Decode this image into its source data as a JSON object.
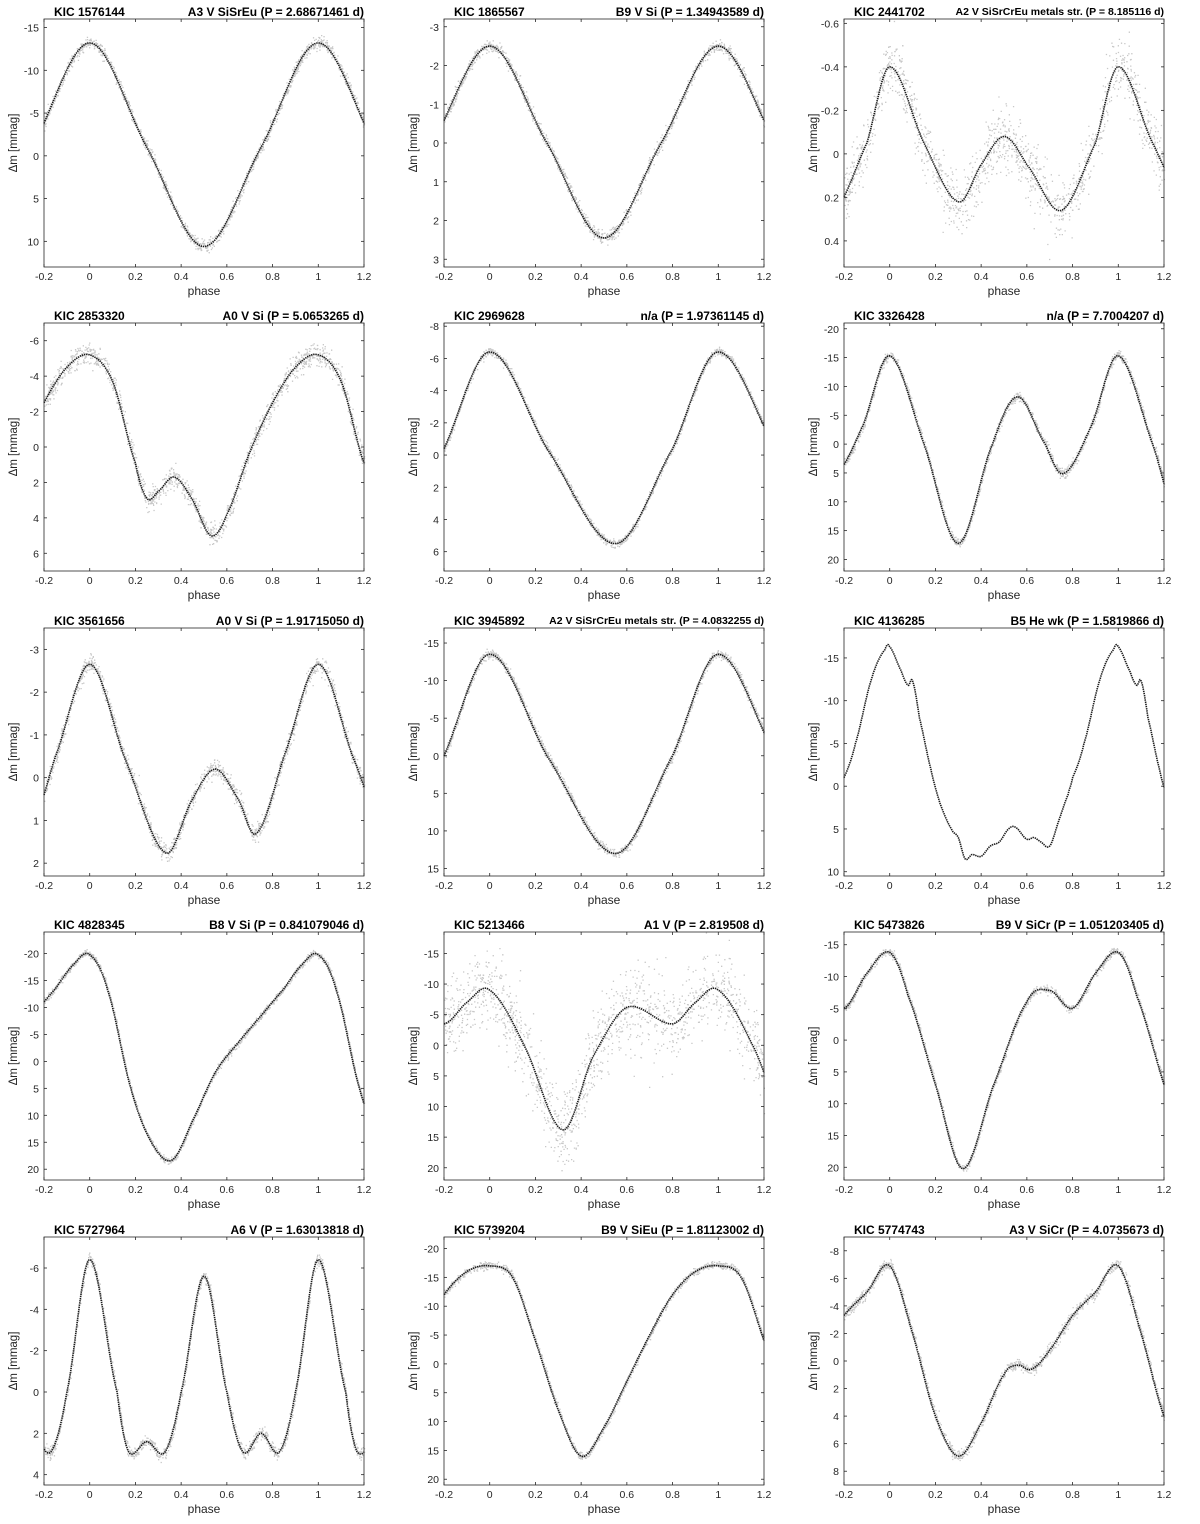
{
  "chart_data": [
    {
      "type": "scatter",
      "title": "KIC 1576144",
      "spec": "A3 V SiSrEu (P = 2.68671461 d)",
      "xlabel": "phase",
      "ylabel": "Δm [mmag]",
      "xlim": [
        -0.2,
        1.2
      ],
      "ylim": [
        -16,
        13
      ],
      "yticks": [
        -15,
        -10,
        -5,
        0,
        5,
        10
      ],
      "yinverted": true,
      "noise": 0.35,
      "x": [
        0,
        0.25,
        0.5,
        0.75
      ],
      "y": [
        -13.2,
        -1.0,
        10.6,
        -1.0
      ]
    },
    {
      "type": "scatter",
      "title": "KIC 1865567",
      "spec": "B9 V Si (P = 1.34943589 d)",
      "xlabel": "phase",
      "ylabel": "Δm [mmag]",
      "xlim": [
        -0.2,
        1.2
      ],
      "ylim": [
        -3.2,
        3.2
      ],
      "yticks": [
        -3,
        -2,
        -1,
        0,
        1,
        2,
        3
      ],
      "yinverted": true,
      "noise": 0.08,
      "x": [
        0,
        0.25,
        0.5,
        0.75
      ],
      "y": [
        -2.5,
        0,
        2.45,
        0
      ]
    },
    {
      "type": "scatter",
      "title": "KIC 2441702",
      "spec": "A2 V SiSrCrEu metals str. (P = 8.185116 d)",
      "xlabel": "phase",
      "ylabel": "Δm [mmag]",
      "xlim": [
        -0.2,
        1.2
      ],
      "ylim": [
        -0.62,
        0.52
      ],
      "yticks": [
        -0.6,
        -0.4,
        -0.2,
        0,
        0.2,
        0.4
      ],
      "yinverted": true,
      "noise": 0.07,
      "smallspec": true,
      "x": [
        0,
        0.15,
        0.3,
        0.4,
        0.5,
        0.6,
        0.75,
        0.9
      ],
      "y": [
        -0.4,
        -0.05,
        0.22,
        0.05,
        -0.08,
        0.05,
        0.26,
        -0.05
      ]
    },
    {
      "type": "scatter",
      "title": "KIC 2853320",
      "spec": "A0 V Si (P = 5.0653265 d)",
      "xlabel": "phase",
      "ylabel": "Δm [mmag]",
      "xlim": [
        -0.2,
        1.2
      ],
      "ylim": [
        -7,
        7
      ],
      "yticks": [
        -6,
        -4,
        -2,
        0,
        2,
        4,
        6
      ],
      "yinverted": true,
      "noise": 0.3,
      "x": [
        0,
        0.1,
        0.2,
        0.25,
        0.3,
        0.37,
        0.45,
        0.53,
        0.6,
        0.7,
        0.8,
        0.9
      ],
      "y": [
        -5.2,
        -3.7,
        0.9,
        2.9,
        2.5,
        1.7,
        3.0,
        5.0,
        3.8,
        0.3,
        -2.5,
        -4.5
      ]
    },
    {
      "type": "scatter",
      "title": "KIC 2969628",
      "spec": "n/a (P = 1.97361145 d)",
      "xlabel": "phase",
      "ylabel": "Δm [mmag]",
      "xlim": [
        -0.2,
        1.2
      ],
      "ylim": [
        -8.2,
        7.2
      ],
      "yticks": [
        -8,
        -6,
        -4,
        -2,
        0,
        2,
        4,
        6
      ],
      "yinverted": true,
      "noise": 0.12,
      "x": [
        0,
        0.25,
        0.55,
        0.8
      ],
      "y": [
        -6.4,
        -0.4,
        5.5,
        -0.4
      ]
    },
    {
      "type": "scatter",
      "title": "KIC 3326428",
      "spec": "n/a (P = 7.7004207 d)",
      "xlabel": "phase",
      "ylabel": "Δm [mmag]",
      "xlim": [
        -0.2,
        1.2
      ],
      "ylim": [
        -21,
        22
      ],
      "yticks": [
        -20,
        -15,
        -10,
        -5,
        0,
        5,
        10,
        15,
        20
      ],
      "yinverted": true,
      "noise": 0.4,
      "x": [
        0,
        0.15,
        0.3,
        0.45,
        0.56,
        0.68,
        0.76,
        0.88
      ],
      "y": [
        -15.3,
        0,
        17.2,
        0,
        -8.2,
        0,
        5.1,
        -3.0
      ]
    },
    {
      "type": "scatter",
      "title": "KIC 3561656",
      "spec": "A0 V Si (P = 1.91715050 d)",
      "xlabel": "phase",
      "ylabel": "Δm [mmag]",
      "xlim": [
        -0.2,
        1.2
      ],
      "ylim": [
        -3.5,
        2.3
      ],
      "yticks": [
        -3,
        -2,
        -1,
        0,
        1,
        2
      ],
      "yinverted": true,
      "noise": 0.1,
      "x": [
        0,
        0.15,
        0.33,
        0.45,
        0.55,
        0.65,
        0.73,
        0.85
      ],
      "y": [
        -2.65,
        -0.5,
        1.75,
        0.5,
        -0.2,
        0.5,
        1.3,
        -0.5
      ]
    },
    {
      "type": "scatter",
      "title": "KIC 3945892",
      "spec": "A2 V SiSrCrEu metals str. (P = 4.0832255 d)",
      "xlabel": "phase",
      "ylabel": "Δm [mmag]",
      "xlim": [
        -0.2,
        1.2
      ],
      "ylim": [
        -17,
        16
      ],
      "yticks": [
        -15,
        -10,
        -5,
        0,
        5,
        10,
        15
      ],
      "yinverted": true,
      "noise": 0.3,
      "smallspec": true,
      "x": [
        0,
        0.25,
        0.55,
        0.8
      ],
      "y": [
        -13.5,
        0,
        13.0,
        0
      ]
    },
    {
      "type": "scatter",
      "title": "KIC 4136285",
      "spec": "B5 He wk (P = 1.5819866 d)",
      "xlabel": "phase",
      "ylabel": "Δm [mmag]",
      "xlim": [
        -0.2,
        1.2
      ],
      "ylim": [
        -18.5,
        10.5
      ],
      "yticks": [
        -15,
        -10,
        -5,
        0,
        5,
        10
      ],
      "yinverted": true,
      "noise": 0,
      "x": [
        0,
        0.05,
        0.08,
        0.1,
        0.13,
        0.18,
        0.22,
        0.27,
        0.3,
        0.33,
        0.36,
        0.4,
        0.44,
        0.48,
        0.52,
        0.55,
        0.6,
        0.63,
        0.66,
        0.7,
        0.74,
        0.78,
        0.8,
        0.85,
        0.92,
        0.98
      ],
      "y": [
        -16.3,
        -13.5,
        -11.8,
        -12.3,
        -8.0,
        -2.0,
        2.0,
        5.0,
        6.0,
        8.5,
        8.0,
        8.2,
        7.0,
        6.5,
        5.0,
        4.8,
        6.2,
        6.0,
        6.5,
        7.0,
        4.0,
        1.0,
        -1.0,
        -5.0,
        -12.5,
        -16.0
      ]
    },
    {
      "type": "scatter",
      "title": "KIC 4828345",
      "spec": "B8 V Si (P = 0.841079046 d)",
      "xlabel": "phase",
      "ylabel": "Δm [mmag]",
      "xlim": [
        -0.2,
        1.2
      ],
      "ylim": [
        -24,
        22
      ],
      "yticks": [
        -20,
        -15,
        -10,
        -5,
        0,
        5,
        10,
        15,
        20
      ],
      "yinverted": true,
      "noise": 0.3,
      "x": [
        0,
        0.08,
        0.18,
        0.27,
        0.36,
        0.45,
        0.55,
        0.65,
        0.75,
        0.85,
        0.93
      ],
      "y": [
        -19.8,
        -13,
        5,
        15,
        18.3,
        11,
        2,
        -3.5,
        -8.5,
        -13.5,
        -18
      ]
    },
    {
      "type": "scatter",
      "title": "KIC 5213466",
      "spec": "A1 V (P = 2.819508 d)",
      "xlabel": "phase",
      "ylabel": "Δm [mmag]",
      "xlim": [
        -0.2,
        1.2
      ],
      "ylim": [
        -18.5,
        22
      ],
      "yticks": [
        -15,
        -10,
        -5,
        0,
        5,
        10,
        15,
        20
      ],
      "yinverted": true,
      "noise": 3.2,
      "x": [
        0,
        0.15,
        0.32,
        0.45,
        0.6,
        0.8,
        0.9
      ],
      "y": [
        -9,
        0,
        13.8,
        2,
        -6.2,
        -3.5,
        -7
      ]
    },
    {
      "type": "scatter",
      "title": "KIC 5473826",
      "spec": "B9 V SiCr (P = 1.051203405 d)",
      "xlabel": "phase",
      "ylabel": "Δm [mmag]",
      "xlim": [
        -0.2,
        1.2
      ],
      "ylim": [
        -17,
        22
      ],
      "yticks": [
        -15,
        -10,
        -5,
        0,
        5,
        10,
        15,
        20
      ],
      "yinverted": true,
      "noise": 0.3,
      "x": [
        0,
        0.08,
        0.2,
        0.32,
        0.45,
        0.6,
        0.7,
        0.8,
        0.9
      ],
      "y": [
        -13.8,
        -7,
        7,
        20.2,
        7.5,
        -6,
        -7.8,
        -5,
        -10.5
      ]
    },
    {
      "type": "scatter",
      "title": "KIC 5727964",
      "spec": "A6 V (P = 1.63013818 d)",
      "xlabel": "phase",
      "ylabel": "Δm [mmag]",
      "xlim": [
        -0.2,
        1.2
      ],
      "ylim": [
        -7.5,
        4.5
      ],
      "yticks": [
        -6,
        -4,
        -2,
        0,
        2,
        4
      ],
      "yinverted": true,
      "noise": 0.15,
      "x": [
        0,
        0.12,
        0.17,
        0.25,
        0.33,
        0.4,
        0.5,
        0.6,
        0.67,
        0.75,
        0.83,
        0.9
      ],
      "y": [
        -6.4,
        0,
        2.9,
        2.4,
        2.9,
        0,
        -5.6,
        0,
        2.9,
        2.0,
        2.9,
        0
      ]
    },
    {
      "type": "scatter",
      "title": "KIC 5739204",
      "spec": "B9 V SiEu (P = 1.81123002 d)",
      "xlabel": "phase",
      "ylabel": "Δm [mmag]",
      "xlim": [
        -0.2,
        1.2
      ],
      "ylim": [
        -22,
        21
      ],
      "yticks": [
        -20,
        -15,
        -10,
        -5,
        0,
        5,
        10,
        15,
        20
      ],
      "yinverted": true,
      "noise": 0.3,
      "x": [
        0,
        0.1,
        0.2,
        0.3,
        0.4,
        0.5,
        0.6,
        0.7,
        0.8,
        0.9
      ],
      "y": [
        -17,
        -15,
        -4,
        8,
        16,
        11,
        3,
        -5,
        -12,
        -16
      ]
    },
    {
      "type": "scatter",
      "title": "KIC 5774743",
      "spec": "A3 V SiCr (P = 4.0735673 d)",
      "xlabel": "phase",
      "ylabel": "Δm [mmag]",
      "xlim": [
        -0.2,
        1.2
      ],
      "ylim": [
        -9,
        9
      ],
      "yticks": [
        -8,
        -6,
        -4,
        -2,
        0,
        2,
        4,
        6,
        8
      ],
      "yinverted": true,
      "noise": 0.2,
      "x": [
        0,
        0.1,
        0.2,
        0.3,
        0.4,
        0.5,
        0.56,
        0.62,
        0.7,
        0.8,
        0.9
      ],
      "y": [
        -6.9,
        -2,
        4,
        6.9,
        4.5,
        1,
        0.3,
        0.6,
        -0.8,
        -3.3,
        -5
      ]
    }
  ]
}
